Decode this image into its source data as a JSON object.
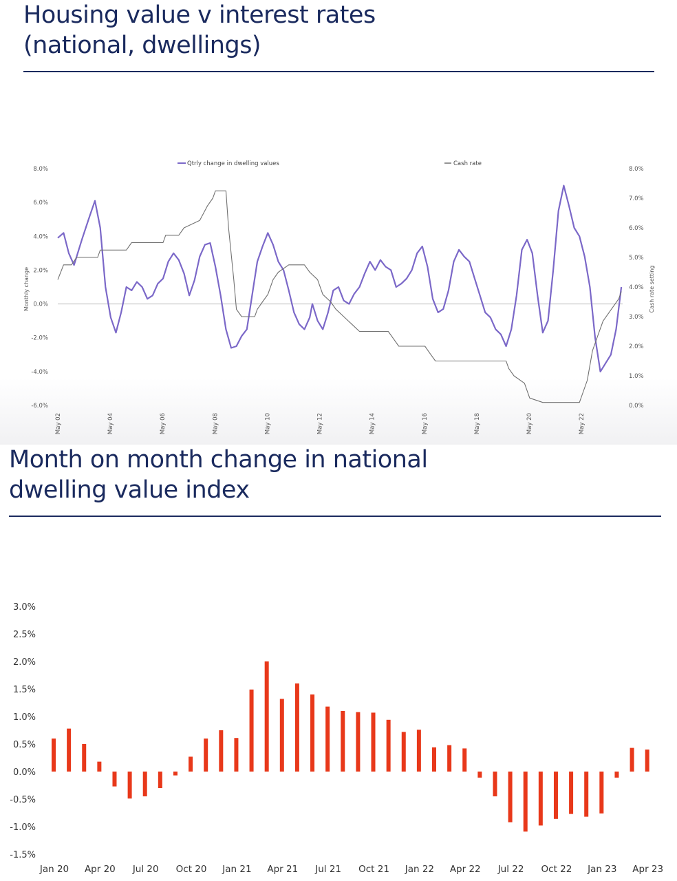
{
  "charts": {
    "top": {
      "title_line1": "Housing value v interest rates",
      "title_line2": "(national, dwellings)"
    },
    "bottom": {
      "title_line1": "Month on month change in national",
      "title_line2": "dwelling value index"
    }
  },
  "colors": {
    "title": "#1a2a5e",
    "purple": "#7b68c8",
    "grey": "#707070",
    "red": "#e8381a"
  },
  "chart_data": [
    {
      "type": "line",
      "title": "Housing value v interest rates (national, dwellings)",
      "ylabel": "Monthly change",
      "y2label": "Cash rate setting",
      "ylim": [
        -6,
        8
      ],
      "y2lim": [
        0,
        8
      ],
      "yticks": [
        "8.0%",
        "6.0%",
        "4.0%",
        "2.0%",
        "0.0%",
        "-2.0%",
        "-4.0%",
        "-6.0%"
      ],
      "y2ticks": [
        "8.0%",
        "7.0%",
        "6.0%",
        "5.0%",
        "4.0%",
        "3.0%",
        "2.0%",
        "1.0%",
        "0.0%"
      ],
      "xticks": [
        "May 02",
        "May 04",
        "May 06",
        "May 08",
        "May 10",
        "May 12",
        "May 14",
        "May 16",
        "May 18",
        "May 20",
        "May 22"
      ],
      "legend": [
        "Qtrly change in dwelling values",
        "Cash rate"
      ],
      "series": [
        {
          "name": "Qtrly change in dwelling values",
          "axis": "left",
          "color": "#7b68c8",
          "points": [
            [
              2002.38,
              3.9
            ],
            [
              2002.6,
              4.2
            ],
            [
              2002.8,
              3.0
            ],
            [
              2003.0,
              2.3
            ],
            [
              2003.3,
              3.8
            ],
            [
              2003.6,
              5.2
            ],
            [
              2003.8,
              6.1
            ],
            [
              2004.0,
              4.5
            ],
            [
              2004.2,
              1.0
            ],
            [
              2004.4,
              -0.8
            ],
            [
              2004.6,
              -1.7
            ],
            [
              2004.8,
              -0.5
            ],
            [
              2005.0,
              1.0
            ],
            [
              2005.2,
              0.8
            ],
            [
              2005.4,
              1.3
            ],
            [
              2005.6,
              1.0
            ],
            [
              2005.8,
              0.3
            ],
            [
              2006.0,
              0.5
            ],
            [
              2006.2,
              1.2
            ],
            [
              2006.4,
              1.5
            ],
            [
              2006.6,
              2.5
            ],
            [
              2006.8,
              3.0
            ],
            [
              2007.0,
              2.6
            ],
            [
              2007.2,
              1.8
            ],
            [
              2007.4,
              0.5
            ],
            [
              2007.6,
              1.4
            ],
            [
              2007.8,
              2.8
            ],
            [
              2008.0,
              3.5
            ],
            [
              2008.2,
              3.6
            ],
            [
              2008.4,
              2.2
            ],
            [
              2008.6,
              0.5
            ],
            [
              2008.8,
              -1.5
            ],
            [
              2009.0,
              -2.6
            ],
            [
              2009.2,
              -2.5
            ],
            [
              2009.4,
              -1.9
            ],
            [
              2009.6,
              -1.5
            ],
            [
              2009.8,
              0.5
            ],
            [
              2010.0,
              2.5
            ],
            [
              2010.2,
              3.4
            ],
            [
              2010.4,
              4.2
            ],
            [
              2010.6,
              3.5
            ],
            [
              2010.8,
              2.5
            ],
            [
              2011.0,
              2.0
            ],
            [
              2011.2,
              0.8
            ],
            [
              2011.4,
              -0.5
            ],
            [
              2011.6,
              -1.2
            ],
            [
              2011.8,
              -1.5
            ],
            [
              2012.0,
              -0.8
            ],
            [
              2012.1,
              0.0
            ],
            [
              2012.3,
              -1.0
            ],
            [
              2012.5,
              -1.5
            ],
            [
              2012.7,
              -0.5
            ],
            [
              2012.9,
              0.8
            ],
            [
              2013.1,
              1.0
            ],
            [
              2013.3,
              0.2
            ],
            [
              2013.5,
              0.0
            ],
            [
              2013.7,
              0.6
            ],
            [
              2013.9,
              1.0
            ],
            [
              2014.1,
              1.8
            ],
            [
              2014.3,
              2.5
            ],
            [
              2014.5,
              2.0
            ],
            [
              2014.7,
              2.6
            ],
            [
              2014.9,
              2.2
            ],
            [
              2015.1,
              2.0
            ],
            [
              2015.3,
              1.0
            ],
            [
              2015.5,
              1.2
            ],
            [
              2015.7,
              1.5
            ],
            [
              2015.9,
              2.0
            ],
            [
              2016.1,
              3.0
            ],
            [
              2016.3,
              3.4
            ],
            [
              2016.5,
              2.2
            ],
            [
              2016.7,
              0.3
            ],
            [
              2016.9,
              -0.5
            ],
            [
              2017.1,
              -0.3
            ],
            [
              2017.3,
              0.8
            ],
            [
              2017.5,
              2.5
            ],
            [
              2017.7,
              3.2
            ],
            [
              2017.9,
              2.8
            ],
            [
              2018.1,
              2.5
            ],
            [
              2018.3,
              1.5
            ],
            [
              2018.5,
              0.5
            ],
            [
              2018.7,
              -0.5
            ],
            [
              2018.9,
              -0.8
            ],
            [
              2019.1,
              -1.5
            ],
            [
              2019.3,
              -1.8
            ],
            [
              2019.5,
              -2.5
            ],
            [
              2019.7,
              -1.5
            ],
            [
              2019.9,
              0.5
            ],
            [
              2020.1,
              3.2
            ],
            [
              2020.3,
              3.8
            ],
            [
              2020.5,
              3.0
            ],
            [
              2020.7,
              0.5
            ],
            [
              2020.9,
              -1.7
            ],
            [
              2021.1,
              -1.0
            ],
            [
              2021.3,
              2.0
            ],
            [
              2021.5,
              5.5
            ],
            [
              2021.7,
              7.0
            ],
            [
              2021.9,
              5.8
            ],
            [
              2022.1,
              4.5
            ],
            [
              2022.3,
              4.0
            ],
            [
              2022.5,
              2.8
            ],
            [
              2022.7,
              1.0
            ],
            [
              2022.9,
              -2.0
            ],
            [
              2023.1,
              -4.0
            ],
            [
              2023.3,
              -3.5
            ],
            [
              2023.5,
              -3.0
            ],
            [
              2023.7,
              -1.5
            ],
            [
              2023.9,
              1.0
            ]
          ]
        },
        {
          "name": "Cash rate",
          "axis": "right",
          "color": "#707070",
          "points": [
            [
              2002.38,
              4.25
            ],
            [
              2002.6,
              4.75
            ],
            [
              2002.9,
              4.75
            ],
            [
              2003.1,
              5.0
            ],
            [
              2003.9,
              5.0
            ],
            [
              2004.0,
              5.25
            ],
            [
              2005.0,
              5.25
            ],
            [
              2005.2,
              5.5
            ],
            [
              2006.4,
              5.5
            ],
            [
              2006.5,
              5.75
            ],
            [
              2007.0,
              5.75
            ],
            [
              2007.2,
              6.0
            ],
            [
              2007.8,
              6.25
            ],
            [
              2008.1,
              6.75
            ],
            [
              2008.3,
              7.0
            ],
            [
              2008.4,
              7.25
            ],
            [
              2008.8,
              7.25
            ],
            [
              2008.9,
              6.0
            ],
            [
              2009.1,
              4.25
            ],
            [
              2009.2,
              3.25
            ],
            [
              2009.4,
              3.0
            ],
            [
              2009.9,
              3.0
            ],
            [
              2010.0,
              3.25
            ],
            [
              2010.2,
              3.5
            ],
            [
              2010.4,
              3.75
            ],
            [
              2010.6,
              4.25
            ],
            [
              2010.8,
              4.5
            ],
            [
              2011.2,
              4.75
            ],
            [
              2011.8,
              4.75
            ],
            [
              2012.0,
              4.5
            ],
            [
              2012.3,
              4.25
            ],
            [
              2012.5,
              3.75
            ],
            [
              2012.8,
              3.5
            ],
            [
              2013.0,
              3.25
            ],
            [
              2013.3,
              3.0
            ],
            [
              2013.6,
              2.75
            ],
            [
              2013.9,
              2.5
            ],
            [
              2015.0,
              2.5
            ],
            [
              2015.2,
              2.25
            ],
            [
              2015.4,
              2.0
            ],
            [
              2016.4,
              2.0
            ],
            [
              2016.6,
              1.75
            ],
            [
              2016.8,
              1.5
            ],
            [
              2019.5,
              1.5
            ],
            [
              2019.6,
              1.25
            ],
            [
              2019.8,
              1.0
            ],
            [
              2020.2,
              0.75
            ],
            [
              2020.4,
              0.25
            ],
            [
              2020.9,
              0.1
            ],
            [
              2022.3,
              0.1
            ],
            [
              2022.4,
              0.35
            ],
            [
              2022.6,
              0.85
            ],
            [
              2022.8,
              1.85
            ],
            [
              2023.0,
              2.35
            ],
            [
              2023.2,
              2.85
            ],
            [
              2023.4,
              3.1
            ],
            [
              2023.6,
              3.35
            ],
            [
              2023.8,
              3.6
            ],
            [
              2023.9,
              3.85
            ]
          ]
        }
      ]
    },
    {
      "type": "bar",
      "title": "Month on month change in national dwelling value index",
      "xlabel": "",
      "ylabel": "",
      "ylim": [
        -1.5,
        3.0
      ],
      "yticks": [
        "3.0%",
        "2.5%",
        "2.0%",
        "1.5%",
        "1.0%",
        "0.5%",
        "0.0%",
        "-0.5%",
        "-1.0%",
        "-1.5%"
      ],
      "xticks": [
        "Jan 20",
        "Apr 20",
        "Jul 20",
        "Oct 20",
        "Jan 21",
        "Apr 21",
        "Jul 21",
        "Oct 21",
        "Jan 22",
        "Apr 22",
        "Jul 22",
        "Oct 22",
        "Jan 23",
        "Apr 23"
      ],
      "categories": [
        "Jan 20",
        "Feb 20",
        "Mar 20",
        "Apr 20",
        "May 20",
        "Jun 20",
        "Jul 20",
        "Aug 20",
        "Sep 20",
        "Oct 20",
        "Nov 20",
        "Dec 20",
        "Jan 21",
        "Feb 21",
        "Mar 21",
        "Apr 21",
        "May 21",
        "Jun 21",
        "Jul 21",
        "Aug 21",
        "Sep 21",
        "Oct 21",
        "Nov 21",
        "Dec 21",
        "Jan 22",
        "Feb 22",
        "Mar 22",
        "Apr 22",
        "May 22",
        "Jun 22",
        "Jul 22",
        "Aug 22",
        "Sep 22",
        "Oct 22",
        "Nov 22",
        "Dec 22",
        "Jan 23",
        "Feb 23",
        "Mar 23",
        "Apr 23"
      ],
      "values": [
        0.6,
        0.78,
        0.5,
        0.18,
        -0.27,
        -0.49,
        -0.45,
        -0.3,
        -0.07,
        0.27,
        0.6,
        0.75,
        0.61,
        1.49,
        2.0,
        1.32,
        1.6,
        1.4,
        1.18,
        1.1,
        1.08,
        1.07,
        0.94,
        0.72,
        0.76,
        0.44,
        0.48,
        0.42,
        -0.11,
        -0.45,
        -0.92,
        -1.09,
        -0.98,
        -0.86,
        -0.77,
        -0.82,
        -0.76,
        -0.11,
        0.43,
        0.4
      ]
    }
  ]
}
